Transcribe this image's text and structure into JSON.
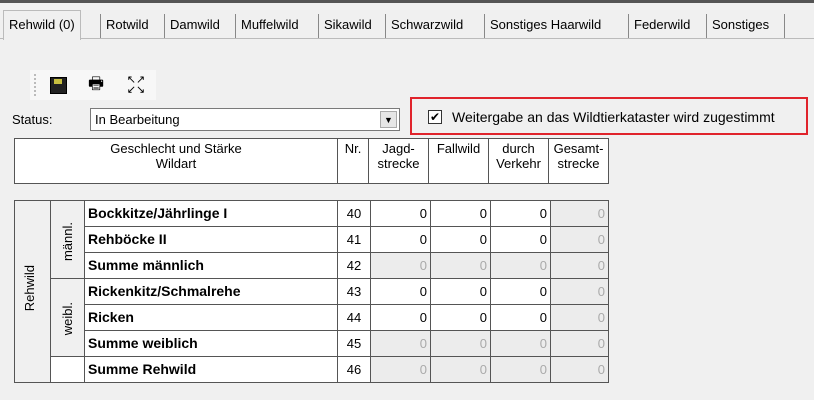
{
  "tabs": [
    "Rehwild (0)",
    "Rotwild",
    "Damwild",
    "Muffelwild",
    "Sikawild",
    "Schwarzwild",
    "Sonstiges Haarwild",
    "Federwild",
    "Sonstiges"
  ],
  "toolbar": {
    "icons": [
      "save-icon",
      "print-icon",
      "fullscreen-icon"
    ]
  },
  "status": {
    "label": "Status:",
    "value": "In Bearbeitung"
  },
  "consent": {
    "label": "Weitergabe an das Wildtierkataster wird zugestimmt",
    "checked": true,
    "highlight_color": "#e0232b"
  },
  "header": {
    "name": "Geschlecht und Stärke\nWildart",
    "nr": "Nr.",
    "jagd": "Jagd-\nstrecke",
    "fallwild": "Fallwild",
    "verkehr": "durch\nVerkehr",
    "gesamt": "Gesamt-\nstrecke"
  },
  "groups": {
    "species": "Rehwild",
    "male": "männl.",
    "female": "weibl."
  },
  "rows": [
    {
      "name": "Bockkitze/Jährlinge I",
      "nr": "40",
      "v": [
        "0",
        "0",
        "0",
        "0"
      ],
      "sum": false
    },
    {
      "name": "Rehböcke II",
      "nr": "41",
      "v": [
        "0",
        "0",
        "0",
        "0"
      ],
      "sum": false
    },
    {
      "name": "Summe männlich",
      "nr": "42",
      "v": [
        "0",
        "0",
        "0",
        "0"
      ],
      "sum": true
    },
    {
      "name": "Rickenkitz/Schmalrehe",
      "nr": "43",
      "v": [
        "0",
        "0",
        "0",
        "0"
      ],
      "sum": false
    },
    {
      "name": "Ricken",
      "nr": "44",
      "v": [
        "0",
        "0",
        "0",
        "0"
      ],
      "sum": false
    },
    {
      "name": "Summe weiblich",
      "nr": "45",
      "v": [
        "0",
        "0",
        "0",
        "0"
      ],
      "sum": true
    },
    {
      "name": "Summe Rehwild",
      "nr": "46",
      "v": [
        "0",
        "0",
        "0",
        "0"
      ],
      "sum": true
    }
  ]
}
